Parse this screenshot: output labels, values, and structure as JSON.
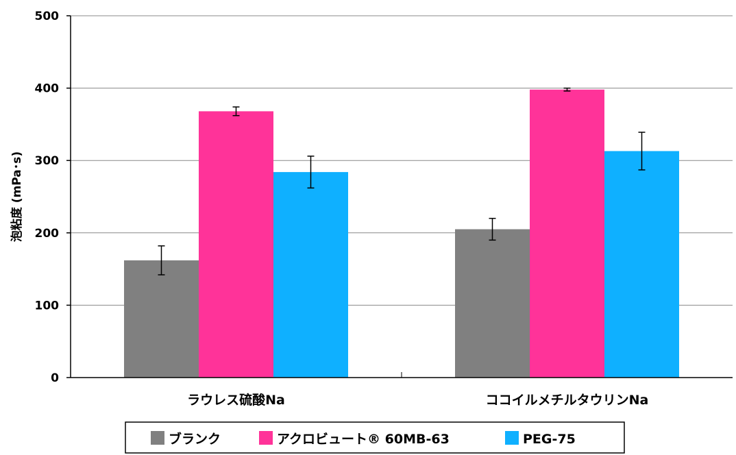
{
  "chart_data": {
    "type": "bar",
    "ylabel": "泡粘度 (mPa･s)",
    "ylim": [
      0,
      500
    ],
    "yticks": [
      0,
      100,
      200,
      300,
      400,
      500
    ],
    "categories": [
      "ラウレス硫酸Na",
      "ココイルメチルタウリンNa"
    ],
    "series": [
      {
        "name": "ブランク",
        "color": "#808080",
        "values": [
          162,
          205
        ],
        "errors": [
          20,
          15
        ]
      },
      {
        "name": "アクロビュート® 60MB-63",
        "color": "#ff3399",
        "values": [
          368,
          398
        ],
        "errors": [
          6,
          2
        ]
      },
      {
        "name": "PEG-75",
        "color": "#0fb0ff",
        "values": [
          284,
          313
        ],
        "errors": [
          22,
          26
        ]
      }
    ],
    "grid": true,
    "legend": "bottom"
  }
}
